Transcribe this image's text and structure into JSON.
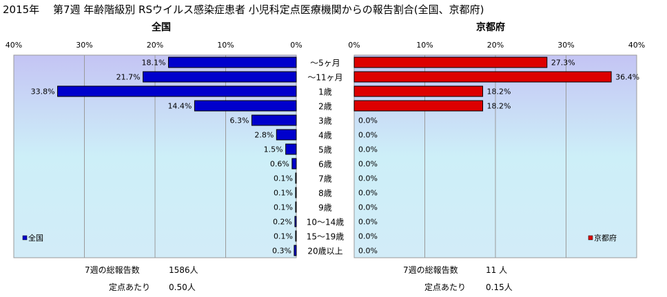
{
  "chart_data": {
    "type": "bar",
    "title": "2015年　 第7週 年齢階級別 RSウイルス感染症患者 小児科定点医療機関からの報告割合(全国、京都府)",
    "categories": [
      "〜5ヶ月",
      "〜11ヶ月",
      "1歳",
      "2歳",
      "3歳",
      "4歳",
      "5歳",
      "6歳",
      "7歳",
      "8歳",
      "9歳",
      "10〜14歳",
      "15〜19歳",
      "20歳以上"
    ],
    "xlim": [
      0,
      40
    ],
    "ticks": [
      "40%",
      "30%",
      "20%",
      "10%",
      "0%"
    ],
    "ticks_right": [
      "0%",
      "10%",
      "20%",
      "30%",
      "40%"
    ],
    "grid": true,
    "series": [
      {
        "name": "全国",
        "panel_title": "全国",
        "legend_label": "全国",
        "legend_position": "bottom-left",
        "color": "#0000cc",
        "values": [
          18.1,
          21.7,
          33.8,
          14.4,
          6.3,
          2.8,
          1.5,
          0.6,
          0.1,
          0.1,
          0.1,
          0.2,
          0.1,
          0.3
        ],
        "labels": [
          "18.1%",
          "21.7%",
          "33.8%",
          "14.4%",
          "6.3%",
          "2.8%",
          "1.5%",
          "0.6%",
          "0.1%",
          "0.1%",
          "0.1%",
          "0.2%",
          "0.1%",
          "0.3%"
        ]
      },
      {
        "name": "京都府",
        "panel_title": "京都府",
        "legend_label": "京都府",
        "legend_position": "bottom-right",
        "color": "#dd0000",
        "values": [
          27.3,
          36.4,
          18.2,
          18.2,
          0,
          0,
          0,
          0,
          0,
          0,
          0,
          0,
          0,
          0
        ],
        "labels": [
          "27.3%",
          "36.4%",
          "18.2%",
          "18.2%",
          "0.0%",
          "0.0%",
          "0.0%",
          "0.0%",
          "0.0%",
          "0.0%",
          "0.0%",
          "0.0%",
          "0.0%",
          "0.0%"
        ]
      }
    ],
    "footer": {
      "national_total_label": "7週の総報告数",
      "national_total_value": "1586人",
      "national_per_label": "定点あたり",
      "national_per_value": "0.50人",
      "kyoto_total_label": "7週の総報告数",
      "kyoto_total_value": "11 人",
      "kyoto_per_label": "定点あたり",
      "kyoto_per_value": "0.15人"
    }
  }
}
